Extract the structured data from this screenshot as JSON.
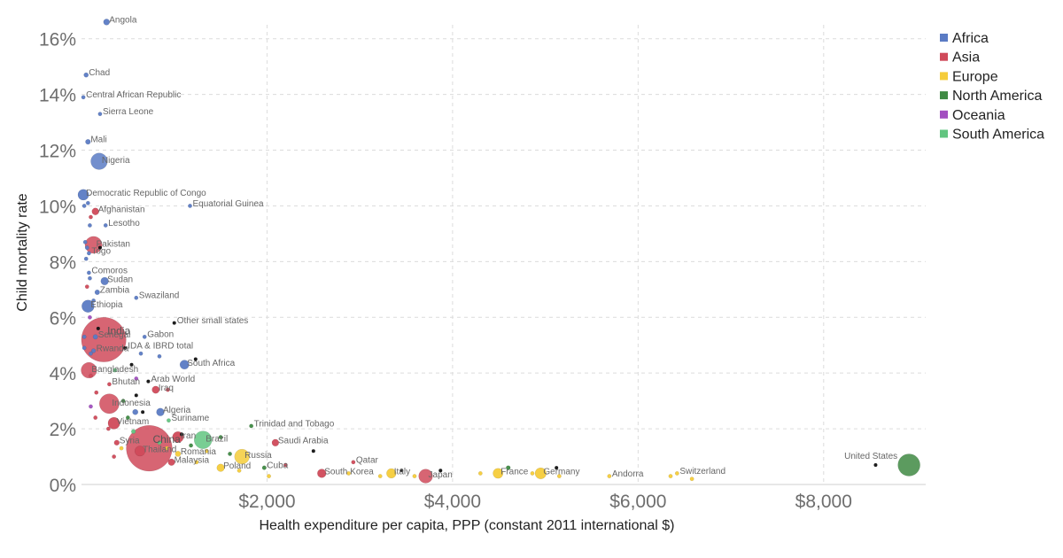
{
  "chart_data": {
    "type": "scatter",
    "title": "",
    "xlabel": "Health expenditure per capita, PPP (constant 2011 international $)",
    "ylabel": "Child mortality rate",
    "xlim": [
      0,
      9100
    ],
    "ylim": [
      0,
      16.5
    ],
    "x_ticks": [
      2000,
      4000,
      6000,
      8000
    ],
    "x_tick_labels": [
      "$2,000",
      "$4,000",
      "$6,000",
      "$8,000"
    ],
    "y_ticks": [
      0,
      2,
      4,
      6,
      8,
      10,
      12,
      14,
      16
    ],
    "y_tick_labels": [
      "0%",
      "2%",
      "4%",
      "6%",
      "8%",
      "10%",
      "12%",
      "14%",
      "16%"
    ],
    "grid": true,
    "legend_position": "top-right",
    "colors": {
      "Africa": "#5b7bc4",
      "Asia": "#d04a5a",
      "Europe": "#f5cc3a",
      "North America": "#3f8a43",
      "Oceania": "#a24fc0",
      "South America": "#62c580",
      "Aggregate": "#111111"
    },
    "legend": [
      "Africa",
      "Asia",
      "Europe",
      "North America",
      "Oceania",
      "South America"
    ],
    "points": [
      {
        "name": "Angola",
        "x": 270,
        "y": 16.6,
        "region": "Africa",
        "pop": 25,
        "label": true
      },
      {
        "name": "Chad",
        "x": 50,
        "y": 14.7,
        "region": "Africa",
        "pop": 14,
        "label": true
      },
      {
        "name": "Central African Republic",
        "x": 20,
        "y": 13.9,
        "region": "Africa",
        "pop": 5,
        "label": true
      },
      {
        "name": "Sierra Leone",
        "x": 200,
        "y": 13.3,
        "region": "Africa",
        "pop": 7,
        "label": true
      },
      {
        "name": "Mali",
        "x": 70,
        "y": 12.3,
        "region": "Africa",
        "pop": 17,
        "label": true
      },
      {
        "name": "Nigeria",
        "x": 190,
        "y": 11.6,
        "region": "Africa",
        "pop": 180,
        "label": true
      },
      {
        "name": "Democratic Republic of Congo",
        "x": 20,
        "y": 10.4,
        "region": "Africa",
        "pop": 77,
        "label": true
      },
      {
        "name": "Equatorial Guinea",
        "x": 1170,
        "y": 10.0,
        "region": "Africa",
        "pop": 1,
        "label": true
      },
      {
        "name": "Afghanistan",
        "x": 150,
        "y": 9.8,
        "region": "Asia",
        "pop": 32,
        "label": true
      },
      {
        "name": "Lesotho",
        "x": 260,
        "y": 9.3,
        "region": "Africa",
        "pop": 2,
        "label": true
      },
      {
        "name": "Pakistan",
        "x": 130,
        "y": 8.6,
        "region": "Asia",
        "pop": 190,
        "label": true
      },
      {
        "name": "Togo",
        "x": 80,
        "y": 8.3,
        "region": "Africa",
        "pop": 7,
        "label": true
      },
      {
        "name": "Comoros",
        "x": 80,
        "y": 7.6,
        "region": "Africa",
        "pop": 1,
        "label": true
      },
      {
        "name": "Sudan",
        "x": 250,
        "y": 7.3,
        "region": "Africa",
        "pop": 40,
        "label": true
      },
      {
        "name": "Zambia",
        "x": 170,
        "y": 6.9,
        "region": "Africa",
        "pop": 16,
        "label": true
      },
      {
        "name": "Swaziland",
        "x": 590,
        "y": 6.7,
        "region": "Africa",
        "pop": 1,
        "label": true
      },
      {
        "name": "Ethiopia",
        "x": 70,
        "y": 6.4,
        "region": "Africa",
        "pop": 100,
        "label": true
      },
      {
        "name": "Other small states",
        "x": 1000,
        "y": 5.8,
        "region": "Aggregate",
        "pop": 1,
        "label": true
      },
      {
        "name": "India",
        "x": 240,
        "y": 5.2,
        "region": "Asia",
        "pop": 1300,
        "label": true
      },
      {
        "name": "Senegal",
        "x": 150,
        "y": 5.3,
        "region": "Africa",
        "pop": 15,
        "label": true
      },
      {
        "name": "Gabon",
        "x": 680,
        "y": 5.3,
        "region": "Africa",
        "pop": 2,
        "label": true
      },
      {
        "name": "IDA & IBRD total",
        "x": 470,
        "y": 4.9,
        "region": "Aggregate",
        "pop": 1,
        "label": true
      },
      {
        "name": "Rwanda",
        "x": 130,
        "y": 4.8,
        "region": "Africa",
        "pop": 12,
        "label": true
      },
      {
        "name": "South Africa",
        "x": 1110,
        "y": 4.3,
        "region": "Africa",
        "pop": 55,
        "label": true
      },
      {
        "name": "Bangladesh",
        "x": 80,
        "y": 4.1,
        "region": "Asia",
        "pop": 160,
        "label": true
      },
      {
        "name": "Arab World",
        "x": 720,
        "y": 3.7,
        "region": "Aggregate",
        "pop": 1,
        "label": true
      },
      {
        "name": "Bhutan",
        "x": 300,
        "y": 3.6,
        "region": "Asia",
        "pop": 1,
        "label": true
      },
      {
        "name": "Iraq",
        "x": 800,
        "y": 3.4,
        "region": "Asia",
        "pop": 36,
        "label": true
      },
      {
        "name": "Indonesia",
        "x": 300,
        "y": 2.9,
        "region": "Asia",
        "pop": 255,
        "label": true
      },
      {
        "name": "Algeria",
        "x": 850,
        "y": 2.6,
        "region": "Africa",
        "pop": 40,
        "label": true
      },
      {
        "name": "Vietnam",
        "x": 350,
        "y": 2.2,
        "region": "Asia",
        "pop": 92,
        "label": true
      },
      {
        "name": "Suriname",
        "x": 940,
        "y": 2.3,
        "region": "South America",
        "pop": 1,
        "label": true
      },
      {
        "name": "Trinidad and Tobago",
        "x": 1830,
        "y": 2.1,
        "region": "North America",
        "pop": 1,
        "label": true
      },
      {
        "name": "Iran",
        "x": 1040,
        "y": 1.7,
        "region": "Asia",
        "pop": 79,
        "label": true
      },
      {
        "name": "Brazil",
        "x": 1310,
        "y": 1.6,
        "region": "South America",
        "pop": 205,
        "label": true
      },
      {
        "name": "Saudi Arabia",
        "x": 2090,
        "y": 1.5,
        "region": "Asia",
        "pop": 31,
        "label": true
      },
      {
        "name": "China",
        "x": 730,
        "y": 1.3,
        "region": "Asia",
        "pop": 1370,
        "label": true
      },
      {
        "name": "Syria",
        "x": 380,
        "y": 1.5,
        "region": "Asia",
        "pop": 18,
        "label": true
      },
      {
        "name": "Thailand",
        "x": 630,
        "y": 1.2,
        "region": "Asia",
        "pop": 68,
        "label": true
      },
      {
        "name": "Romania",
        "x": 1040,
        "y": 1.1,
        "region": "Europe",
        "pop": 20,
        "label": true
      },
      {
        "name": "Russia",
        "x": 1730,
        "y": 1.0,
        "region": "Europe",
        "pop": 144,
        "label": true
      },
      {
        "name": "Malaysia",
        "x": 970,
        "y": 0.8,
        "region": "Asia",
        "pop": 30,
        "label": true
      },
      {
        "name": "Poland",
        "x": 1500,
        "y": 0.6,
        "region": "Europe",
        "pop": 38,
        "label": true
      },
      {
        "name": "Cuba",
        "x": 1970,
        "y": 0.6,
        "region": "North America",
        "pop": 11,
        "label": true
      },
      {
        "name": "Qatar",
        "x": 2930,
        "y": 0.8,
        "region": "Asia",
        "pop": 2,
        "label": true
      },
      {
        "name": "South Korea",
        "x": 2590,
        "y": 0.4,
        "region": "Asia",
        "pop": 50,
        "label": true
      },
      {
        "name": "Italy",
        "x": 3340,
        "y": 0.4,
        "region": "Europe",
        "pop": 60,
        "label": true
      },
      {
        "name": "Japan",
        "x": 3710,
        "y": 0.3,
        "region": "Asia",
        "pop": 127,
        "label": true
      },
      {
        "name": "France",
        "x": 4490,
        "y": 0.4,
        "region": "Europe",
        "pop": 66,
        "label": true
      },
      {
        "name": "Germany",
        "x": 4950,
        "y": 0.4,
        "region": "Europe",
        "pop": 82,
        "label": true
      },
      {
        "name": "Andorra",
        "x": 5690,
        "y": 0.3,
        "region": "Europe",
        "pop": 1,
        "label": true
      },
      {
        "name": "Switzerland",
        "x": 6420,
        "y": 0.4,
        "region": "Europe",
        "pop": 8,
        "label": true
      },
      {
        "name": "United States",
        "x": 8920,
        "y": 0.7,
        "region": "North America",
        "pop": 320,
        "label": true
      },
      {
        "name": "US aggregate marker",
        "x": 8560,
        "y": 0.7,
        "region": "Aggregate",
        "pop": 1,
        "label": false
      },
      {
        "name": "a1",
        "x": 30,
        "y": 10.0,
        "region": "Africa",
        "pop": 10,
        "label": false
      },
      {
        "name": "a2",
        "x": 70,
        "y": 10.1,
        "region": "Africa",
        "pop": 8,
        "label": false
      },
      {
        "name": "a3",
        "x": 100,
        "y": 9.6,
        "region": "Asia",
        "pop": 6,
        "label": false
      },
      {
        "name": "a4",
        "x": 90,
        "y": 9.3,
        "region": "Africa",
        "pop": 8,
        "label": false
      },
      {
        "name": "a5",
        "x": 40,
        "y": 8.7,
        "region": "Africa",
        "pop": 4,
        "label": false
      },
      {
        "name": "a6",
        "x": 60,
        "y": 8.5,
        "region": "Africa",
        "pop": 10,
        "label": false
      },
      {
        "name": "a7",
        "x": 200,
        "y": 8.5,
        "region": "Aggregate",
        "pop": 1,
        "label": false
      },
      {
        "name": "a8",
        "x": 50,
        "y": 8.1,
        "region": "Africa",
        "pop": 6,
        "label": false
      },
      {
        "name": "a9",
        "x": 90,
        "y": 7.4,
        "region": "Africa",
        "pop": 8,
        "label": false
      },
      {
        "name": "a10",
        "x": 60,
        "y": 7.1,
        "region": "Asia",
        "pop": 3,
        "label": false
      },
      {
        "name": "a11",
        "x": 130,
        "y": 6.6,
        "region": "Africa",
        "pop": 5,
        "label": false
      },
      {
        "name": "a12",
        "x": 90,
        "y": 6.0,
        "region": "Oceania",
        "pop": 4,
        "label": false
      },
      {
        "name": "a13",
        "x": 30,
        "y": 5.3,
        "region": "Africa",
        "pop": 10,
        "label": false
      },
      {
        "name": "a14",
        "x": 180,
        "y": 5.6,
        "region": "Aggregate",
        "pop": 1,
        "label": false
      },
      {
        "name": "a15",
        "x": 30,
        "y": 4.9,
        "region": "Africa",
        "pop": 3,
        "label": false
      },
      {
        "name": "a16",
        "x": 100,
        "y": 4.7,
        "region": "Africa",
        "pop": 5,
        "label": false
      },
      {
        "name": "a17",
        "x": 540,
        "y": 4.3,
        "region": "Aggregate",
        "pop": 1,
        "label": false
      },
      {
        "name": "a18",
        "x": 640,
        "y": 4.7,
        "region": "Africa",
        "pop": 3,
        "label": false
      },
      {
        "name": "a19",
        "x": 840,
        "y": 4.6,
        "region": "Africa",
        "pop": 3,
        "label": false
      },
      {
        "name": "a20",
        "x": 1230,
        "y": 4.5,
        "region": "Aggregate",
        "pop": 1,
        "label": false
      },
      {
        "name": "a21",
        "x": 100,
        "y": 3.9,
        "region": "Asia",
        "pop": 6,
        "label": false
      },
      {
        "name": "a22",
        "x": 360,
        "y": 4.1,
        "region": "South America",
        "pop": 4,
        "label": false
      },
      {
        "name": "a23",
        "x": 590,
        "y": 3.8,
        "region": "Oceania",
        "pop": 4,
        "label": false
      },
      {
        "name": "a24",
        "x": 930,
        "y": 3.4,
        "region": "Asia",
        "pop": 3,
        "label": false
      },
      {
        "name": "a25",
        "x": 160,
        "y": 3.3,
        "region": "Asia",
        "pop": 5,
        "label": false
      },
      {
        "name": "a26",
        "x": 450,
        "y": 3.0,
        "region": "North America",
        "pop": 8,
        "label": false
      },
      {
        "name": "a27",
        "x": 590,
        "y": 3.2,
        "region": "Aggregate",
        "pop": 1,
        "label": false
      },
      {
        "name": "a28",
        "x": 100,
        "y": 2.8,
        "region": "Oceania",
        "pop": 3,
        "label": false
      },
      {
        "name": "a29",
        "x": 580,
        "y": 2.6,
        "region": "Africa",
        "pop": 20,
        "label": false
      },
      {
        "name": "a30",
        "x": 660,
        "y": 2.6,
        "region": "Aggregate",
        "pop": 1,
        "label": false
      },
      {
        "name": "a31",
        "x": 150,
        "y": 2.4,
        "region": "Asia",
        "pop": 3,
        "label": false
      },
      {
        "name": "a32",
        "x": 500,
        "y": 2.4,
        "region": "North America",
        "pop": 3,
        "label": false
      },
      {
        "name": "a33",
        "x": 1080,
        "y": 1.8,
        "region": "Aggregate",
        "pop": 1,
        "label": false
      },
      {
        "name": "a34",
        "x": 1500,
        "y": 1.7,
        "region": "North America",
        "pop": 3,
        "label": false
      },
      {
        "name": "a35",
        "x": 1350,
        "y": 1.2,
        "region": "Europe",
        "pop": 4,
        "label": false
      },
      {
        "name": "a36",
        "x": 840,
        "y": 1.5,
        "region": "South America",
        "pop": 8,
        "label": false
      },
      {
        "name": "a37",
        "x": 560,
        "y": 1.9,
        "region": "South America",
        "pop": 12,
        "label": false
      },
      {
        "name": "a38",
        "x": 350,
        "y": 1.0,
        "region": "Asia",
        "pop": 8,
        "label": false
      },
      {
        "name": "a39",
        "x": 1600,
        "y": 1.1,
        "region": "North America",
        "pop": 3,
        "label": false
      },
      {
        "name": "a40",
        "x": 1240,
        "y": 0.8,
        "region": "Europe",
        "pop": 3,
        "label": false
      },
      {
        "name": "a41",
        "x": 1700,
        "y": 0.5,
        "region": "Europe",
        "pop": 4,
        "label": false
      },
      {
        "name": "a42",
        "x": 2020,
        "y": 0.3,
        "region": "Europe",
        "pop": 3,
        "label": false
      },
      {
        "name": "a43",
        "x": 2200,
        "y": 0.7,
        "region": "Asia",
        "pop": 4,
        "label": false
      },
      {
        "name": "a44",
        "x": 2500,
        "y": 1.2,
        "region": "Aggregate",
        "pop": 1,
        "label": false
      },
      {
        "name": "a45",
        "x": 2880,
        "y": 0.4,
        "region": "Europe",
        "pop": 6,
        "label": false
      },
      {
        "name": "a46",
        "x": 3220,
        "y": 0.3,
        "region": "Europe",
        "pop": 6,
        "label": false
      },
      {
        "name": "a47",
        "x": 3450,
        "y": 0.5,
        "region": "Aggregate",
        "pop": 1,
        "label": false
      },
      {
        "name": "a48",
        "x": 3590,
        "y": 0.3,
        "region": "Europe",
        "pop": 4,
        "label": false
      },
      {
        "name": "a49",
        "x": 3870,
        "y": 0.5,
        "region": "Aggregate",
        "pop": 1,
        "label": false
      },
      {
        "name": "a50",
        "x": 4300,
        "y": 0.4,
        "region": "Europe",
        "pop": 5,
        "label": false
      },
      {
        "name": "a51",
        "x": 4600,
        "y": 0.6,
        "region": "North America",
        "pop": 12,
        "label": false
      },
      {
        "name": "a52",
        "x": 4860,
        "y": 0.4,
        "region": "Europe",
        "pop": 6,
        "label": false
      },
      {
        "name": "a53",
        "x": 5120,
        "y": 0.6,
        "region": "Aggregate",
        "pop": 1,
        "label": false
      },
      {
        "name": "a54",
        "x": 5150,
        "y": 0.3,
        "region": "Europe",
        "pop": 5,
        "label": false
      },
      {
        "name": "a55",
        "x": 6350,
        "y": 0.3,
        "region": "Europe",
        "pop": 3,
        "label": false
      },
      {
        "name": "a56",
        "x": 6580,
        "y": 0.2,
        "region": "Europe",
        "pop": 3,
        "label": false
      },
      {
        "name": "a57",
        "x": 290,
        "y": 2.0,
        "region": "Asia",
        "pop": 3,
        "label": false
      },
      {
        "name": "a58",
        "x": 430,
        "y": 1.3,
        "region": "Europe",
        "pop": 3,
        "label": false
      },
      {
        "name": "a59",
        "x": 920,
        "y": 1.3,
        "region": "Europe",
        "pop": 4,
        "label": false
      },
      {
        "name": "a60",
        "x": 1180,
        "y": 1.4,
        "region": "North America",
        "pop": 3,
        "label": false
      }
    ]
  }
}
